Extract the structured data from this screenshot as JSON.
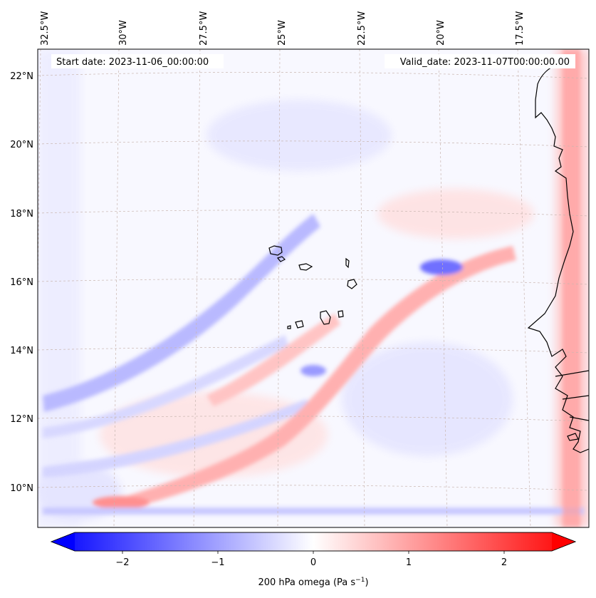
{
  "map": {
    "start_date_label": "Start date: 2023-11-06_00:00:00",
    "valid_date_label": "Valid_date: 2023-11-07T00:00:00.00",
    "longitude_labels": [
      "32.5°W",
      "30°W",
      "27.5°W",
      "25°W",
      "22.5°W",
      "20°W",
      "17.5°W"
    ],
    "latitude_labels": [
      "22°N",
      "20°N",
      "18°N",
      "16°N",
      "14°N",
      "12°N",
      "10°N"
    ],
    "colorbar": {
      "label": "200 hPa omega (Pa s",
      "label_sup": "−1",
      "label_end": ")",
      "ticks": [
        "−2",
        "−1",
        "0",
        "1",
        "2"
      ],
      "min_color": "#0000ff",
      "mid_color": "#ffffff",
      "max_color": "#ff0000"
    },
    "colors": {
      "coastline": "#000000",
      "gridline": "#c9b6b0",
      "background": "#f8f8ff"
    }
  }
}
